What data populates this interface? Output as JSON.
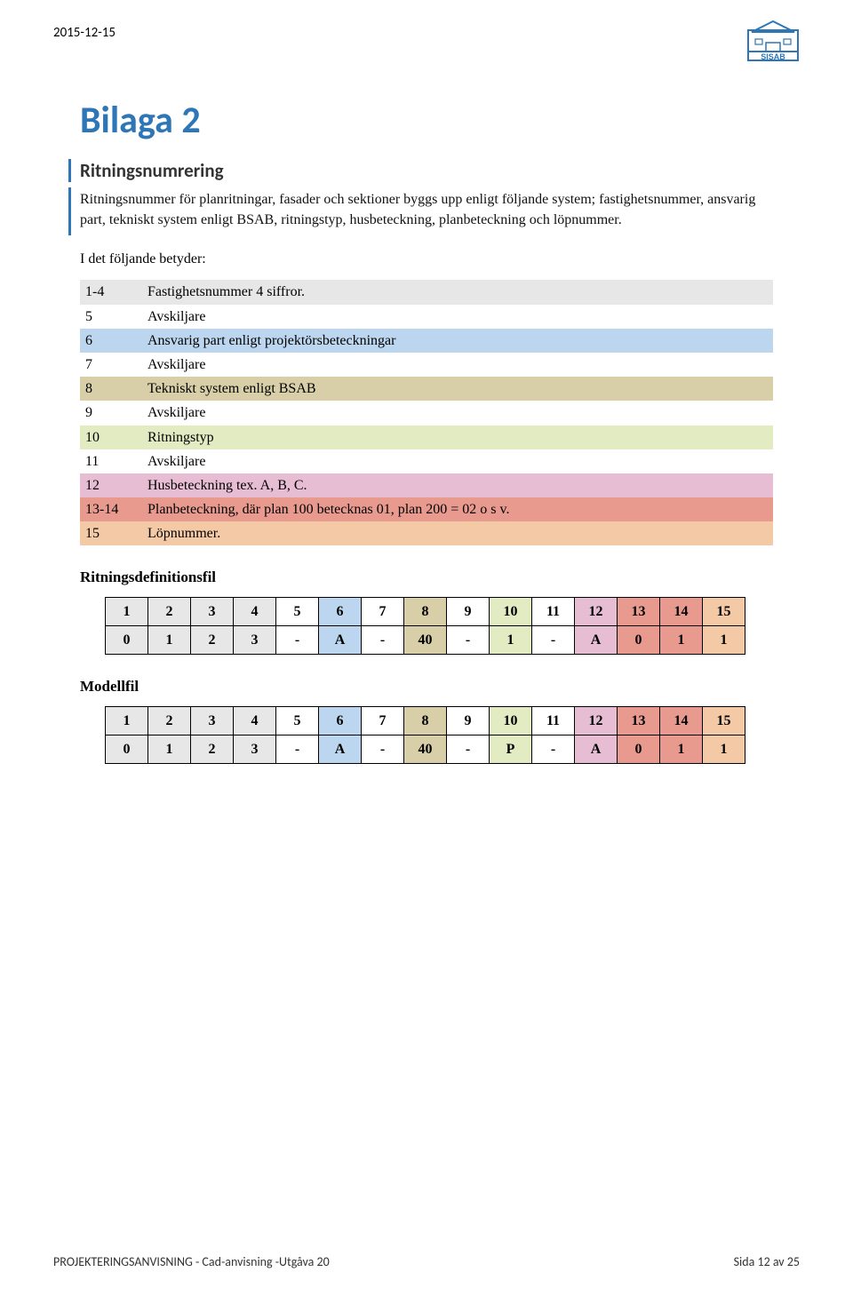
{
  "header_date": "2015-12-15",
  "logo": {
    "name": "SISAB",
    "house_color": "#2e76b5"
  },
  "title": "Bilaga 2",
  "subtitle": "Ritningsnumrering",
  "intro": "Ritningsnummer för planritningar, fasader och sektioner byggs upp enligt följande system; fastighetsnummer, ansvarig part, tekniskt system enligt BSAB, ritningstyp, husbeteckning, planbeteckning och löpnummer.",
  "lead": "I det följande betyder:",
  "legend": {
    "rows": [
      {
        "pos": "1-4",
        "desc": "Fastighetsnummer 4 siffror.",
        "bg": "#e7e7e7"
      },
      {
        "pos": "5",
        "desc": "Avskiljare",
        "bg": "#ffffff"
      },
      {
        "pos": "6",
        "desc": "Ansvarig part enligt projektörsbeteckningar",
        "bg": "#bcd6ef"
      },
      {
        "pos": "7",
        "desc": "Avskiljare",
        "bg": "#ffffff"
      },
      {
        "pos": "8",
        "desc": "Tekniskt system enligt BSAB",
        "bg": "#d8cfa8"
      },
      {
        "pos": "9",
        "desc": "Avskiljare",
        "bg": "#ffffff"
      },
      {
        "pos": "10",
        "desc": "Ritningstyp",
        "bg": "#e3ebc3"
      },
      {
        "pos": "11",
        "desc": "Avskiljare",
        "bg": "#ffffff"
      },
      {
        "pos": "12",
        "desc": "Husbeteckning tex. A, B, C.",
        "bg": "#e7bdd3"
      },
      {
        "pos": "13-14",
        "desc": "Planbeteckning, där plan 100 betecknas 01, plan 200 = 02 o s v.",
        "bg": "#e89a8f"
      },
      {
        "pos": "15",
        "desc": "Löpnummer.",
        "bg": "#f3c9a6"
      }
    ]
  },
  "grid_colors": {
    "c1": "#e7e7e7",
    "c2": "#ffffff",
    "c3": "#bcd6ef",
    "c4": "#d8cfa8",
    "c5": "#e3ebc3",
    "c6": "#e7bdd3",
    "c7": "#e89a8f",
    "c8": "#f3c9a6"
  },
  "ritningsdef": {
    "heading": "Ritningsdefinitionsfil",
    "header_row": [
      "1",
      "2",
      "3",
      "4",
      "5",
      "6",
      "7",
      "8",
      "9",
      "10",
      "11",
      "12",
      "13",
      "14",
      "15"
    ],
    "data_row": [
      "0",
      "1",
      "2",
      "3",
      "-",
      "A",
      "-",
      "40",
      "-",
      "1",
      "-",
      "A",
      "0",
      "1",
      "1"
    ],
    "col_colors": [
      "c1",
      "c1",
      "c1",
      "c1",
      "c2",
      "c3",
      "c2",
      "c4",
      "c2",
      "c5",
      "c2",
      "c6",
      "c7",
      "c7",
      "c8"
    ]
  },
  "modellfil": {
    "heading": "Modellfil",
    "header_row": [
      "1",
      "2",
      "3",
      "4",
      "5",
      "6",
      "7",
      "8",
      "9",
      "10",
      "11",
      "12",
      "13",
      "14",
      "15"
    ],
    "data_row": [
      "0",
      "1",
      "2",
      "3",
      "-",
      "A",
      "-",
      "40",
      "-",
      "P",
      "-",
      "A",
      "0",
      "1",
      "1"
    ],
    "col_colors": [
      "c1",
      "c1",
      "c1",
      "c1",
      "c2",
      "c3",
      "c2",
      "c4",
      "c2",
      "c5",
      "c2",
      "c6",
      "c7",
      "c7",
      "c8"
    ]
  },
  "footer_left": "PROJEKTERINGSANVISNING - Cad-anvisning -Utgåva 20",
  "footer_right": "Sida 12 av 25"
}
